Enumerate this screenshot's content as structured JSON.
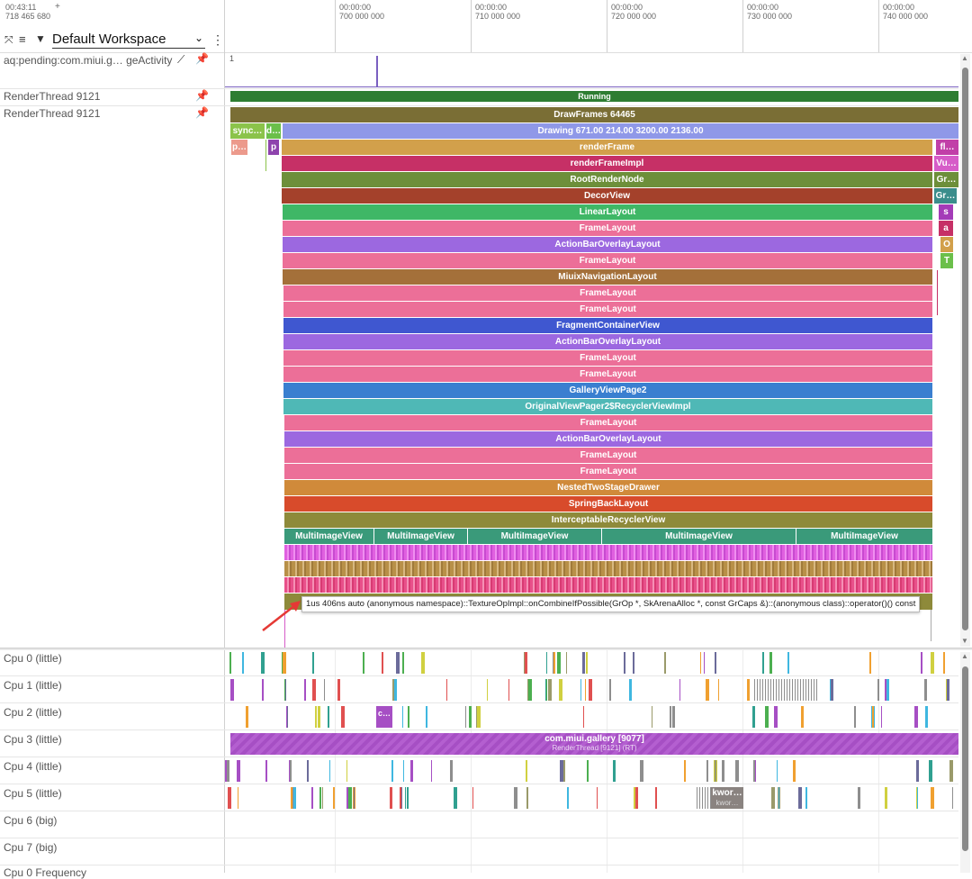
{
  "header": {
    "time_top": "00:43:11",
    "time_bottom": "718 465 680",
    "plus": "+",
    "workspace": "Default Workspace",
    "ticks": [
      {
        "x": 372,
        "t": "00:00:00",
        "v": "700 000 000"
      },
      {
        "x": 523,
        "t": "00:00:00",
        "v": "710 000 000"
      },
      {
        "x": 674,
        "t": "00:00:00",
        "v": "720 000 000"
      },
      {
        "x": 825,
        "t": "00:00:00",
        "v": "730 000 000"
      },
      {
        "x": 976,
        "t": "00:00:00",
        "v": "740 000 000"
      }
    ]
  },
  "tracks": {
    "pending_label": "aq:pending:com.miui.g… geActivity",
    "pending_value": "1",
    "render1_label": "RenderThread 9121",
    "render1_state": "Running",
    "render2_label": "RenderThread 9121"
  },
  "slices": [
    {
      "l": 256,
      "w": 809,
      "y": 119,
      "c": "#7a6e35",
      "t": "DrawFrames 64465"
    },
    {
      "l": 256,
      "w": 38,
      "y": 137,
      "c": "#8bc34a",
      "t": "sync…"
    },
    {
      "l": 296,
      "w": 16,
      "y": 137,
      "c": "#6bbf4a",
      "t": "d…"
    },
    {
      "l": 314,
      "w": 751,
      "y": 137,
      "c": "#8f98e8",
      "t": "Drawing 671.00 214.00 3200.00 2136.00"
    },
    {
      "l": 257,
      "w": 18,
      "y": 155,
      "c": "#ec9a8c",
      "t": "p…"
    },
    {
      "l": 298,
      "w": 12,
      "y": 155,
      "c": "#8e44ad",
      "t": "p"
    },
    {
      "l": 313,
      "w": 723,
      "y": 155,
      "c": "#d2a04b",
      "t": "renderFrame"
    },
    {
      "l": 1040,
      "w": 25,
      "y": 155,
      "c": "#c13fa8",
      "t": "fl…"
    },
    {
      "l": 313,
      "w": 723,
      "y": 173,
      "c": "#c63066",
      "t": "renderFrameImpl"
    },
    {
      "l": 1038,
      "w": 27,
      "y": 173,
      "c": "#d65cc8",
      "t": "Vu…"
    },
    {
      "l": 313,
      "w": 723,
      "y": 191,
      "c": "#6d8f3a",
      "t": "RootRenderNode"
    },
    {
      "l": 1038,
      "w": 27,
      "y": 191,
      "c": "#6d8f3a",
      "t": "Gr…"
    },
    {
      "l": 313,
      "w": 723,
      "y": 209,
      "c": "#a4412b",
      "t": "DecorView"
    },
    {
      "l": 1038,
      "w": 25,
      "y": 209,
      "c": "#3b8d8c",
      "t": "Gr…"
    },
    {
      "l": 314,
      "w": 722,
      "y": 227,
      "c": "#3fb766",
      "t": "LinearLayout"
    },
    {
      "l": 1043,
      "w": 16,
      "y": 227,
      "c": "#a43bb8",
      "t": "s"
    },
    {
      "l": 314,
      "w": 722,
      "y": 245,
      "c": "#ec6f98",
      "t": "FrameLayout"
    },
    {
      "l": 1043,
      "w": 16,
      "y": 245,
      "c": "#c63066",
      "t": "a"
    },
    {
      "l": 314,
      "w": 722,
      "y": 263,
      "c": "#9c68e0",
      "t": "ActionBarOverlayLayout"
    },
    {
      "l": 1045,
      "w": 14,
      "y": 263,
      "c": "#d2a04b",
      "t": "O"
    },
    {
      "l": 314,
      "w": 722,
      "y": 281,
      "c": "#ec6f98",
      "t": "FrameLayout"
    },
    {
      "l": 1045,
      "w": 14,
      "y": 281,
      "c": "#6bbf4a",
      "t": "T"
    },
    {
      "l": 314,
      "w": 722,
      "y": 299,
      "c": "#a4703a",
      "t": "MiuixNavigationLayout"
    },
    {
      "l": 315,
      "w": 721,
      "y": 317,
      "c": "#ec6f98",
      "t": "FrameLayout"
    },
    {
      "l": 315,
      "w": 721,
      "y": 335,
      "c": "#ec6f98",
      "t": "FrameLayout"
    },
    {
      "l": 315,
      "w": 721,
      "y": 353,
      "c": "#3f57d0",
      "t": "FragmentContainerView"
    },
    {
      "l": 315,
      "w": 721,
      "y": 371,
      "c": "#9c68e0",
      "t": "ActionBarOverlayLayout"
    },
    {
      "l": 315,
      "w": 721,
      "y": 389,
      "c": "#ec6f98",
      "t": "FrameLayout"
    },
    {
      "l": 315,
      "w": 721,
      "y": 407,
      "c": "#ec6f98",
      "t": "FrameLayout"
    },
    {
      "l": 315,
      "w": 721,
      "y": 425,
      "c": "#3a7fd0",
      "t": "GalleryViewPage2"
    },
    {
      "l": 315,
      "w": 721,
      "y": 443,
      "c": "#4fb8b6",
      "t": "OriginalViewPager2$RecyclerViewImpl"
    },
    {
      "l": 316,
      "w": 720,
      "y": 461,
      "c": "#ec6f98",
      "t": "FrameLayout"
    },
    {
      "l": 316,
      "w": 720,
      "y": 479,
      "c": "#9c68e0",
      "t": "ActionBarOverlayLayout"
    },
    {
      "l": 316,
      "w": 720,
      "y": 497,
      "c": "#ec6f98",
      "t": "FrameLayout"
    },
    {
      "l": 316,
      "w": 720,
      "y": 515,
      "c": "#ec6f98",
      "t": "FrameLayout"
    },
    {
      "l": 316,
      "w": 720,
      "y": 533,
      "c": "#d08a3a",
      "t": "NestedTwoStageDrawer"
    },
    {
      "l": 316,
      "w": 720,
      "y": 551,
      "c": "#d84b2b",
      "t": "SpringBackLayout"
    },
    {
      "l": 316,
      "w": 720,
      "y": 569,
      "c": "#8e8a3a",
      "t": "InterceptableRecyclerView"
    },
    {
      "l": 316,
      "w": 99,
      "y": 587,
      "c": "#3a9a7a",
      "t": "MultiImageView"
    },
    {
      "l": 416,
      "w": 103,
      "y": 587,
      "c": "#3a9a7a",
      "t": "MultiImageView"
    },
    {
      "l": 520,
      "w": 148,
      "y": 587,
      "c": "#3a9a7a",
      "t": "MultiImageView"
    },
    {
      "l": 669,
      "w": 215,
      "y": 587,
      "c": "#3a9a7a",
      "t": "MultiImageView"
    },
    {
      "l": 885,
      "w": 151,
      "y": 587,
      "c": "#3a9a7a",
      "t": "MultiImageView"
    }
  ],
  "tooltip": "1us 406ns auto (anonymous namespace)::TextureOpImpl::onCombineIfPossible(GrOp *, SkArenaAlloc *, const GrCaps &)::(anonymous class)::operator()() const",
  "cpus": [
    {
      "label": "Cpu 0 (little)",
      "y": 721
    },
    {
      "label": "Cpu 1 (little)",
      "y": 751
    },
    {
      "label": "Cpu 2 (little)",
      "y": 781
    },
    {
      "label": "Cpu 3 (little)",
      "y": 811
    },
    {
      "label": "Cpu 4 (little)",
      "y": 841
    },
    {
      "label": "Cpu 5 (little)",
      "y": 871
    },
    {
      "label": "Cpu 6 (big)",
      "y": 901
    },
    {
      "label": "Cpu 7 (big)",
      "y": 931
    }
  ],
  "cpu3_slice": {
    "proc": "com.miui.gallery [9077]",
    "thread": "RenderThread [9121] (RT)"
  },
  "cpu2_small": "c…",
  "cpu5_kwor1": "kwor…",
  "cpu5_kwor2": "kwor…",
  "cpu_freq_label": "Cpu 0 Frequency"
}
